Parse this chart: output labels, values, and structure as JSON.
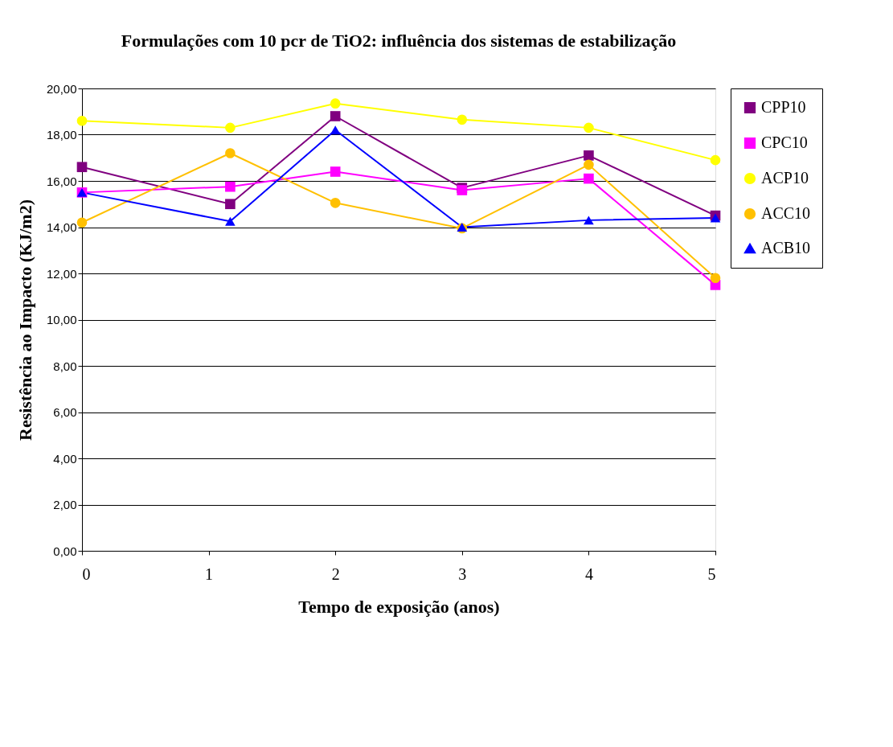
{
  "chart_data": {
    "type": "line",
    "title": "Formulações com 10 pcr de TiO2: influência dos sistemas de estabilização",
    "xlabel": "Tempo de exposição (anos)",
    "ylabel": "Resistência ao Impacto (KJ/m2)",
    "x": [
      0,
      1.17,
      2,
      3,
      4,
      5
    ],
    "xlim": [
      0,
      5
    ],
    "xticks": [
      0,
      1,
      2,
      3,
      4,
      5
    ],
    "ylim": [
      0,
      20
    ],
    "yticks": [
      {
        "value": 0,
        "label": "0,00"
      },
      {
        "value": 2,
        "label": "2,00"
      },
      {
        "value": 4,
        "label": "4,00"
      },
      {
        "value": 6,
        "label": "6,00"
      },
      {
        "value": 8,
        "label": "8,00"
      },
      {
        "value": 10,
        "label": "10,00"
      },
      {
        "value": 12,
        "label": "12,00"
      },
      {
        "value": 14,
        "label": "14,00"
      },
      {
        "value": 16,
        "label": "16,00"
      },
      {
        "value": 18,
        "label": "18,00"
      },
      {
        "value": 20,
        "label": "20,00"
      }
    ],
    "grid": "y",
    "legend": "right",
    "series": [
      {
        "name": "CPP10",
        "color": "#800080",
        "marker": "square",
        "values": [
          16.6,
          15.0,
          18.8,
          15.7,
          17.1,
          14.5
        ]
      },
      {
        "name": "CPC10",
        "color": "#ff00ff",
        "marker": "square",
        "values": [
          15.5,
          15.75,
          16.4,
          15.6,
          16.1,
          11.5
        ]
      },
      {
        "name": "ACP10",
        "color": "#ffff00",
        "marker": "circle",
        "values": [
          18.6,
          18.3,
          19.35,
          18.65,
          18.3,
          16.9
        ]
      },
      {
        "name": "ACC10",
        "color": "#ffc000",
        "marker": "circle",
        "values": [
          14.2,
          17.2,
          15.05,
          13.95,
          16.7,
          11.8
        ]
      },
      {
        "name": "ACB10",
        "color": "#0000ff",
        "marker": "triangle",
        "values": [
          15.5,
          14.25,
          18.2,
          14.0,
          14.3,
          14.4
        ]
      }
    ]
  }
}
